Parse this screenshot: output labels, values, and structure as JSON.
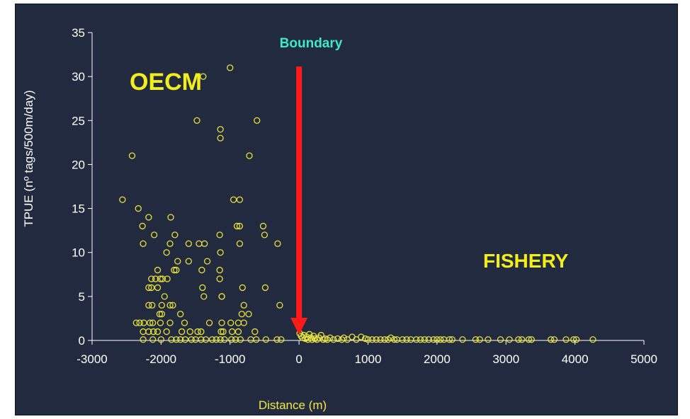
{
  "chart_data": {
    "type": "scatter",
    "title": "",
    "xlabel": "Distance (m)",
    "ylabel": "TPUE (nº tags/500m/day)",
    "xlim": [
      -3000,
      5000
    ],
    "ylim": [
      0,
      35
    ],
    "x_ticks": [
      -3000,
      -2000,
      -1000,
      0,
      1000,
      2000,
      3000,
      4000,
      5000
    ],
    "y_ticks": [
      0,
      5,
      10,
      15,
      20,
      25,
      30,
      35
    ],
    "grid": false,
    "marker_color": "#e8e23a",
    "annotations": {
      "boundary": "Boundary",
      "oecm": "OECM",
      "fishery": "FISHERY"
    },
    "boundary_x": 0,
    "boundary_arrow_color": "#ff1a1a",
    "series": [
      {
        "points": [
          [
            -2560,
            16
          ],
          [
            -2420,
            21
          ],
          [
            -2330,
            15
          ],
          [
            -2270,
            13
          ],
          [
            -2260,
            11
          ],
          [
            -2180,
            14
          ],
          [
            -2100,
            12
          ],
          [
            -1860,
            14
          ],
          [
            -1800,
            12
          ],
          [
            -1600,
            11
          ],
          [
            -1450,
            11
          ],
          [
            -1370,
            11
          ],
          [
            -1150,
            12
          ],
          [
            -1140,
            10
          ],
          [
            -1150,
            8
          ],
          [
            -1150,
            7
          ],
          [
            -1120,
            5
          ],
          [
            -1480,
            25
          ],
          [
            -1140,
            24
          ],
          [
            -1140,
            23
          ],
          [
            -1000,
            31
          ],
          [
            -1390,
            30
          ],
          [
            -720,
            21
          ],
          [
            -610,
            25
          ],
          [
            -950,
            16
          ],
          [
            -860,
            16
          ],
          [
            -900,
            13
          ],
          [
            -860,
            13
          ],
          [
            -860,
            11
          ],
          [
            -520,
            13
          ],
          [
            -500,
            12
          ],
          [
            -310,
            11
          ],
          [
            -1870,
            11
          ],
          [
            -1920,
            10
          ],
          [
            -1760,
            9
          ],
          [
            -1600,
            9
          ],
          [
            -1330,
            9
          ],
          [
            -1410,
            8
          ],
          [
            -1810,
            8
          ],
          [
            -1780,
            8
          ],
          [
            -2050,
            8
          ],
          [
            -2010,
            7
          ],
          [
            -2080,
            7
          ],
          [
            -2140,
            7
          ],
          [
            -1910,
            7
          ],
          [
            -1980,
            7
          ],
          [
            -1950,
            5
          ],
          [
            -2180,
            6
          ],
          [
            -2140,
            6
          ],
          [
            -2050,
            6
          ],
          [
            -1990,
            4
          ],
          [
            -2180,
            4
          ],
          [
            -2130,
            4
          ],
          [
            -1870,
            4
          ],
          [
            -1830,
            4
          ],
          [
            -1720,
            3
          ],
          [
            -2020,
            3
          ],
          [
            -1990,
            3
          ],
          [
            -1400,
            6
          ],
          [
            -1380,
            5
          ],
          [
            -1120,
            5
          ],
          [
            -820,
            6
          ],
          [
            -490,
            6
          ],
          [
            -280,
            4
          ],
          [
            -800,
            4
          ],
          [
            -830,
            3
          ],
          [
            -730,
            3
          ],
          [
            -880,
            2
          ],
          [
            -2360,
            2
          ],
          [
            -2310,
            2
          ],
          [
            -2250,
            2
          ],
          [
            -2160,
            2
          ],
          [
            -2120,
            2
          ],
          [
            -2010,
            2
          ],
          [
            -1870,
            2
          ],
          [
            -1660,
            2
          ],
          [
            -1300,
            2
          ],
          [
            -1120,
            2
          ],
          [
            -990,
            2
          ],
          [
            -800,
            2
          ],
          [
            -2260,
            1
          ],
          [
            -2110,
            1
          ],
          [
            -2180,
            1
          ],
          [
            -2050,
            1
          ],
          [
            -1920,
            1
          ],
          [
            -1700,
            1
          ],
          [
            -1580,
            1
          ],
          [
            -1470,
            1
          ],
          [
            -1420,
            1
          ],
          [
            -1100,
            1
          ],
          [
            -1130,
            1
          ],
          [
            -970,
            1
          ],
          [
            -880,
            1
          ],
          [
            -640,
            1
          ],
          [
            -2260,
            0.1
          ],
          [
            -2120,
            0.1
          ],
          [
            -2000,
            0.1
          ],
          [
            -1850,
            0.1
          ],
          [
            -1780,
            0.1
          ],
          [
            -1720,
            0.1
          ],
          [
            -1650,
            0.1
          ],
          [
            -1560,
            0.1
          ],
          [
            -1500,
            0.1
          ],
          [
            -1420,
            0.1
          ],
          [
            -1350,
            0.1
          ],
          [
            -1260,
            0.1
          ],
          [
            -1200,
            0.1
          ],
          [
            -1140,
            0.1
          ],
          [
            -1080,
            0.1
          ],
          [
            -980,
            0.1
          ],
          [
            -920,
            0.1
          ],
          [
            -850,
            0.1
          ],
          [
            -700,
            0.1
          ],
          [
            -620,
            0.1
          ],
          [
            -480,
            0.1
          ],
          [
            -320,
            0.1
          ],
          [
            -260,
            0.1
          ],
          [
            10,
            0.8
          ],
          [
            30,
            0.5
          ],
          [
            50,
            0.3
          ],
          [
            70,
            0.6
          ],
          [
            90,
            0.2
          ],
          [
            110,
            0.4
          ],
          [
            130,
            0.1
          ],
          [
            150,
            0.7
          ],
          [
            170,
            0.3
          ],
          [
            190,
            0.1
          ],
          [
            210,
            0.5
          ],
          [
            230,
            0.2
          ],
          [
            260,
            0.1
          ],
          [
            290,
            0.3
          ],
          [
            320,
            0.6
          ],
          [
            350,
            0.1
          ],
          [
            380,
            0.2
          ],
          [
            410,
            0.1
          ],
          [
            450,
            0.3
          ],
          [
            500,
            0.1
          ],
          [
            560,
            0.2
          ],
          [
            620,
            0.1
          ],
          [
            650,
            0.3
          ],
          [
            700,
            0.1
          ],
          [
            770,
            0.4
          ],
          [
            830,
            0.1
          ],
          [
            900,
            0.4
          ],
          [
            960,
            0.2
          ],
          [
            1000,
            0.1
          ],
          [
            1060,
            0.1
          ],
          [
            1120,
            0.1
          ],
          [
            1180,
            0.1
          ],
          [
            1240,
            0.1
          ],
          [
            1290,
            0.1
          ],
          [
            1330,
            0.3
          ],
          [
            1380,
            0.1
          ],
          [
            1420,
            0.1
          ],
          [
            1500,
            0.1
          ],
          [
            1560,
            0.1
          ],
          [
            1620,
            0.1
          ],
          [
            1700,
            0.1
          ],
          [
            1760,
            0.1
          ],
          [
            1820,
            0.1
          ],
          [
            1880,
            0.1
          ],
          [
            1950,
            0.1
          ],
          [
            2000,
            0.1
          ],
          [
            2050,
            0.1
          ],
          [
            2100,
            0.1
          ],
          [
            2180,
            0.1
          ],
          [
            2220,
            0.1
          ],
          [
            2370,
            0.1
          ],
          [
            2560,
            0.1
          ],
          [
            2620,
            0.1
          ],
          [
            2740,
            0.1
          ],
          [
            2920,
            0.1
          ],
          [
            3050,
            0.1
          ],
          [
            3180,
            0.1
          ],
          [
            3230,
            0.1
          ],
          [
            3330,
            0.1
          ],
          [
            3370,
            0.1
          ],
          [
            3650,
            0.1
          ],
          [
            3700,
            0.1
          ],
          [
            3870,
            0.1
          ],
          [
            3980,
            0.1
          ],
          [
            4020,
            0.1
          ],
          [
            4260,
            0.1
          ]
        ]
      }
    ]
  }
}
